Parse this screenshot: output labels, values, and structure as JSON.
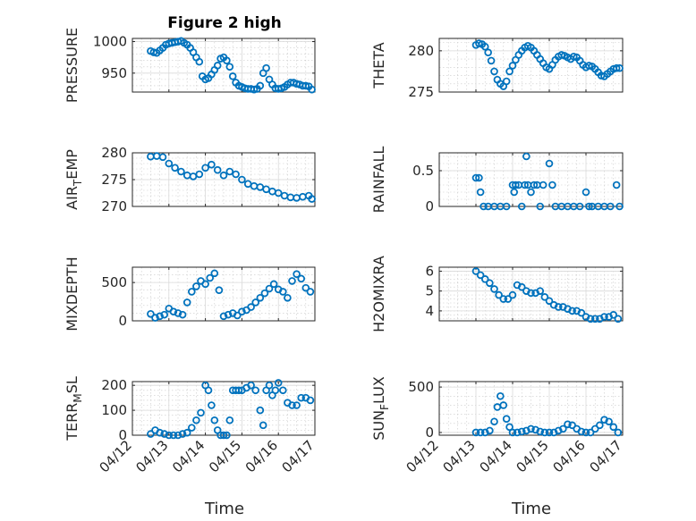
{
  "chart_data": {
    "type": "scatter",
    "title": "Figure 2 high",
    "xlabel": "Time",
    "x_tick_labels": [
      "04/12",
      "04/13",
      "04/14",
      "04/15",
      "04/16",
      "04/17"
    ],
    "x_ticks_days": [
      "2021-04-12",
      "2021-04-13",
      "2021-04-14",
      "2021-04-15",
      "2021-04-16",
      "2021-04-17"
    ],
    "xlim": [
      "2021-04-12",
      "2021-04-17"
    ],
    "marker": "circle",
    "marker_color": "#0072BD",
    "grid": true,
    "minor_grid": true,
    "panels": [
      {
        "ylabel": "PRESSURE",
        "ylabel_sub": "",
        "ylim": [
          920,
          1005
        ],
        "yticks": [
          950,
          1000
        ],
        "x": [
          "04/12 12:00",
          "04/12 14:00",
          "04/12 16:00",
          "04/12 18:00",
          "04/12 20:00",
          "04/12 22:00",
          "04/13 00:00",
          "04/13 02:00",
          "04/13 04:00",
          "04/13 06:00",
          "04/13 08:00",
          "04/13 10:00",
          "04/13 12:00",
          "04/13 14:00",
          "04/13 16:00",
          "04/13 18:00",
          "04/13 20:00",
          "04/13 22:00",
          "04/14 00:00",
          "04/14 02:00",
          "04/14 04:00",
          "04/14 06:00",
          "04/14 08:00",
          "04/14 10:00",
          "04/14 12:00",
          "04/14 14:00",
          "04/14 16:00",
          "04/14 18:00",
          "04/14 20:00",
          "04/14 22:00",
          "04/15 00:00",
          "04/15 02:00",
          "04/15 04:00",
          "04/15 06:00",
          "04/15 08:00",
          "04/15 10:00",
          "04/15 12:00",
          "04/15 14:00",
          "04/15 16:00",
          "04/15 18:00",
          "04/15 20:00",
          "04/15 22:00",
          "04/16 00:00",
          "04/16 02:00",
          "04/16 04:00",
          "04/16 06:00",
          "04/16 08:00",
          "04/16 10:00",
          "04/16 12:00",
          "04/16 14:00",
          "04/16 16:00",
          "04/16 18:00",
          "04/16 20:00",
          "04/16 22:00"
        ],
        "y": [
          985,
          983,
          982,
          986,
          990,
          995,
          997,
          998,
          999,
          1000,
          1001,
          998,
          995,
          990,
          983,
          975,
          968,
          945,
          940,
          942,
          948,
          955,
          962,
          973,
          975,
          970,
          960,
          945,
          935,
          930,
          928,
          926,
          925,
          925,
          924,
          925,
          930,
          950,
          958,
          940,
          932,
          926,
          925,
          926,
          928,
          932,
          935,
          935,
          933,
          932,
          930,
          930,
          929,
          924
        ]
      },
      {
        "ylabel": "THETA",
        "ylabel_sub": "",
        "ylim": [
          275,
          281.5
        ],
        "yticks": [
          275,
          280
        ],
        "x": [
          "04/13 00:00",
          "04/13 02:00",
          "04/13 04:00",
          "04/13 06:00",
          "04/13 08:00",
          "04/13 10:00",
          "04/13 12:00",
          "04/13 14:00",
          "04/13 16:00",
          "04/13 18:00",
          "04/13 20:00",
          "04/13 22:00",
          "04/14 00:00",
          "04/14 02:00",
          "04/14 04:00",
          "04/14 06:00",
          "04/14 08:00",
          "04/14 10:00",
          "04/14 12:00",
          "04/14 14:00",
          "04/14 16:00",
          "04/14 18:00",
          "04/14 20:00",
          "04/14 22:00",
          "04/15 00:00",
          "04/15 02:00",
          "04/15 04:00",
          "04/15 06:00",
          "04/15 08:00",
          "04/15 10:00",
          "04/15 12:00",
          "04/15 14:00",
          "04/15 16:00",
          "04/15 18:00",
          "04/15 20:00",
          "04/15 22:00",
          "04/16 00:00",
          "04/16 02:00",
          "04/16 04:00",
          "04/16 06:00",
          "04/16 08:00",
          "04/16 10:00",
          "04/16 12:00",
          "04/16 14:00",
          "04/16 16:00",
          "04/16 18:00",
          "04/16 20:00",
          "04/16 22:00"
        ],
        "y": [
          280.7,
          280.9,
          280.8,
          280.5,
          279.8,
          278.8,
          277.5,
          276.5,
          276.0,
          275.7,
          276.3,
          277.5,
          278.2,
          278.9,
          279.5,
          280.0,
          280.4,
          280.6,
          280.4,
          280.0,
          279.5,
          279.0,
          278.5,
          278.0,
          277.8,
          278.3,
          278.9,
          279.3,
          279.5,
          279.4,
          279.2,
          279.0,
          279.3,
          279.2,
          278.8,
          278.3,
          278.0,
          278.2,
          278.1,
          277.8,
          277.4,
          277.0,
          276.9,
          277.2,
          277.5,
          277.8,
          277.9,
          277.9
        ]
      },
      {
        "ylabel": "AIR",
        "ylabel_sub": "T",
        "ylabel_after": "EMP",
        "ylim": [
          270,
          280
        ],
        "yticks": [
          270,
          275,
          280
        ],
        "x": [
          "04/12 12:00",
          "04/12 16:00",
          "04/12 20:00",
          "04/13 00:00",
          "04/13 04:00",
          "04/13 08:00",
          "04/13 12:00",
          "04/13 16:00",
          "04/13 20:00",
          "04/14 00:00",
          "04/14 04:00",
          "04/14 08:00",
          "04/14 12:00",
          "04/14 16:00",
          "04/14 20:00",
          "04/15 00:00",
          "04/15 04:00",
          "04/15 08:00",
          "04/15 12:00",
          "04/15 16:00",
          "04/15 20:00",
          "04/16 00:00",
          "04/16 04:00",
          "04/16 08:00",
          "04/16 12:00",
          "04/16 16:00",
          "04/16 20:00",
          "04/16 22:00"
        ],
        "y": [
          279.3,
          279.4,
          279.2,
          278.0,
          277.2,
          276.5,
          275.8,
          275.6,
          276.0,
          277.2,
          277.8,
          276.8,
          275.8,
          276.5,
          276.0,
          275.0,
          274.2,
          273.8,
          273.6,
          273.2,
          272.8,
          272.5,
          272.0,
          271.7,
          271.6,
          271.8,
          272.0,
          271.4
        ]
      },
      {
        "ylabel": "RAINFALL",
        "ylabel_sub": "",
        "ylim": [
          0,
          0.75
        ],
        "yticks": [
          0,
          0.5
        ],
        "x": [
          "04/13 00:00",
          "04/13 02:00",
          "04/13 03:00",
          "04/13 05:00",
          "04/13 08:00",
          "04/13 12:00",
          "04/13 16:00",
          "04/13 20:00",
          "04/14 00:00",
          "04/14 01:00",
          "04/14 02:00",
          "04/14 04:00",
          "04/14 06:00",
          "04/14 08:00",
          "04/14 09:00",
          "04/14 10:00",
          "04/14 12:00",
          "04/14 14:00",
          "04/14 16:00",
          "04/14 18:00",
          "04/14 20:00",
          "04/15 00:00",
          "04/15 02:00",
          "04/15 04:00",
          "04/15 08:00",
          "04/15 12:00",
          "04/15 16:00",
          "04/15 20:00",
          "04/16 00:00",
          "04/16 02:00",
          "04/16 04:00",
          "04/16 08:00",
          "04/16 12:00",
          "04/16 16:00",
          "04/16 20:00",
          "04/16 22:00"
        ],
        "y": [
          0.4,
          0.4,
          0.2,
          0,
          0,
          0,
          0,
          0,
          0.3,
          0.2,
          0.3,
          0.3,
          0,
          0.3,
          0.7,
          0.3,
          0.2,
          0.3,
          0.3,
          0,
          0.3,
          0.6,
          0.3,
          0,
          0,
          0,
          0,
          0,
          0.2,
          0,
          0,
          0,
          0,
          0,
          0.3,
          0
        ]
      },
      {
        "ylabel": "MIXDEPTH",
        "ylabel_sub": "",
        "ylim": [
          0,
          700
        ],
        "yticks": [
          0,
          500
        ],
        "x": [
          "04/12 12:00",
          "04/12 15:00",
          "04/12 18:00",
          "04/12 21:00",
          "04/13 00:00",
          "04/13 03:00",
          "04/13 06:00",
          "04/13 09:00",
          "04/13 12:00",
          "04/13 15:00",
          "04/13 18:00",
          "04/13 21:00",
          "04/14 00:00",
          "04/14 03:00",
          "04/14 06:00",
          "04/14 09:00",
          "04/14 12:00",
          "04/14 15:00",
          "04/14 18:00",
          "04/14 21:00",
          "04/15 00:00",
          "04/15 03:00",
          "04/15 06:00",
          "04/15 09:00",
          "04/15 12:00",
          "04/15 15:00",
          "04/15 18:00",
          "04/15 21:00",
          "04/16 00:00",
          "04/16 03:00",
          "04/16 06:00",
          "04/16 09:00",
          "04/16 12:00",
          "04/16 15:00",
          "04/16 18:00",
          "04/16 21:00"
        ],
        "y": [
          90,
          40,
          60,
          80,
          160,
          120,
          100,
          80,
          240,
          380,
          450,
          520,
          480,
          560,
          620,
          400,
          60,
          80,
          100,
          70,
          120,
          140,
          180,
          240,
          300,
          360,
          420,
          480,
          410,
          380,
          300,
          520,
          610,
          550,
          430,
          380
        ]
      },
      {
        "ylabel": "H2OMIXRA",
        "ylabel_sub": "",
        "ylim": [
          3.5,
          6.2
        ],
        "yticks": [
          4,
          5,
          6
        ],
        "x": [
          "04/13 00:00",
          "04/13 03:00",
          "04/13 06:00",
          "04/13 09:00",
          "04/13 12:00",
          "04/13 15:00",
          "04/13 18:00",
          "04/13 21:00",
          "04/14 00:00",
          "04/14 03:00",
          "04/14 06:00",
          "04/14 09:00",
          "04/14 12:00",
          "04/14 15:00",
          "04/14 18:00",
          "04/14 21:00",
          "04/15 00:00",
          "04/15 03:00",
          "04/15 06:00",
          "04/15 09:00",
          "04/15 12:00",
          "04/15 15:00",
          "04/15 18:00",
          "04/15 21:00",
          "04/16 00:00",
          "04/16 03:00",
          "04/16 06:00",
          "04/16 09:00",
          "04/16 12:00",
          "04/16 15:00",
          "04/16 18:00",
          "04/16 21:00"
        ],
        "y": [
          6.0,
          5.8,
          5.6,
          5.4,
          5.1,
          4.8,
          4.6,
          4.6,
          4.8,
          5.3,
          5.2,
          5.0,
          4.9,
          4.9,
          5.0,
          4.7,
          4.5,
          4.3,
          4.2,
          4.2,
          4.1,
          4.0,
          4.0,
          3.9,
          3.7,
          3.6,
          3.6,
          3.6,
          3.7,
          3.7,
          3.8,
          3.6
        ]
      },
      {
        "ylabel": "TERR",
        "ylabel_sub": "M",
        "ylabel_after": "SL",
        "ylim": [
          0,
          215
        ],
        "yticks": [
          0,
          100,
          200
        ],
        "x": [
          "04/12 12:00",
          "04/12 15:00",
          "04/12 18:00",
          "04/12 21:00",
          "04/13 00:00",
          "04/13 03:00",
          "04/13 06:00",
          "04/13 09:00",
          "04/13 12:00",
          "04/13 15:00",
          "04/13 18:00",
          "04/13 21:00",
          "04/14 00:00",
          "04/14 02:00",
          "04/14 04:00",
          "04/14 06:00",
          "04/14 08:00",
          "04/14 10:00",
          "04/14 12:00",
          "04/14 14:00",
          "04/14 16:00",
          "04/14 18:00",
          "04/14 20:00",
          "04/14 22:00",
          "04/15 00:00",
          "04/15 03:00",
          "04/15 06:00",
          "04/15 09:00",
          "04/15 12:00",
          "04/15 14:00",
          "04/15 16:00",
          "04/15 18:00",
          "04/15 20:00",
          "04/15 22:00",
          "04/16 00:00",
          "04/16 03:00",
          "04/16 06:00",
          "04/16 09:00",
          "04/16 12:00",
          "04/16 15:00",
          "04/16 18:00",
          "04/16 21:00"
        ],
        "y": [
          5,
          20,
          10,
          5,
          0,
          0,
          0,
          5,
          10,
          30,
          60,
          90,
          200,
          180,
          120,
          60,
          20,
          0,
          0,
          0,
          60,
          180,
          180,
          180,
          180,
          190,
          200,
          180,
          100,
          40,
          180,
          200,
          160,
          180,
          210,
          180,
          130,
          120,
          120,
          150,
          150,
          140
        ]
      },
      {
        "ylabel": "SUN",
        "ylabel_sub": "F",
        "ylabel_after": "LUX",
        "ylim": [
          -30,
          560
        ],
        "yticks": [
          0,
          500
        ],
        "x": [
          "04/13 00:00",
          "04/13 03:00",
          "04/13 06:00",
          "04/13 09:00",
          "04/13 12:00",
          "04/13 14:00",
          "04/13 16:00",
          "04/13 18:00",
          "04/13 20:00",
          "04/13 22:00",
          "04/14 00:00",
          "04/14 03:00",
          "04/14 06:00",
          "04/14 09:00",
          "04/14 12:00",
          "04/14 15:00",
          "04/14 18:00",
          "04/14 21:00",
          "04/15 00:00",
          "04/15 03:00",
          "04/15 06:00",
          "04/15 09:00",
          "04/15 12:00",
          "04/15 15:00",
          "04/15 18:00",
          "04/15 21:00",
          "04/16 00:00",
          "04/16 03:00",
          "04/16 06:00",
          "04/16 09:00",
          "04/16 12:00",
          "04/16 15:00",
          "04/16 18:00",
          "04/16 21:00"
        ],
        "y": [
          0,
          0,
          0,
          20,
          120,
          280,
          400,
          300,
          150,
          60,
          0,
          0,
          10,
          20,
          40,
          30,
          10,
          0,
          0,
          0,
          20,
          40,
          90,
          80,
          40,
          10,
          0,
          0,
          40,
          80,
          140,
          120,
          60,
          0
        ]
      }
    ]
  }
}
